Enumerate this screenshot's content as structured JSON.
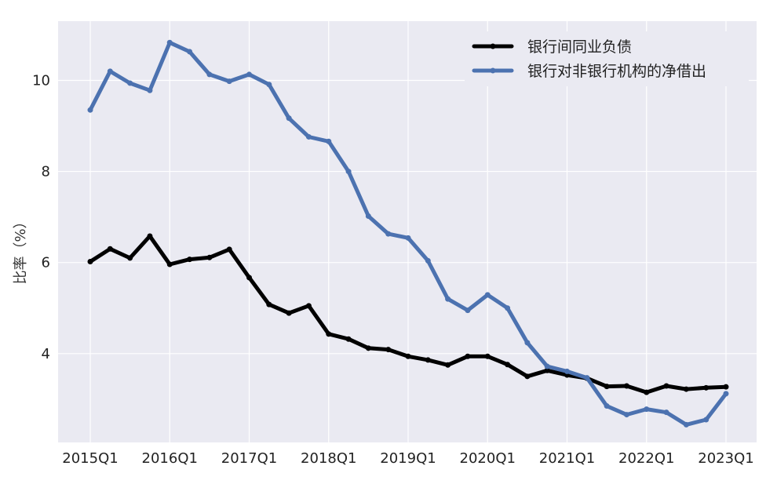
{
  "chart_data": {
    "type": "line",
    "title": "",
    "xlabel": "",
    "ylabel": "比率（%）",
    "x": [
      "2015Q1",
      "2015Q2",
      "2015Q3",
      "2015Q4",
      "2016Q1",
      "2016Q2",
      "2016Q3",
      "2016Q4",
      "2017Q1",
      "2017Q2",
      "2017Q3",
      "2017Q4",
      "2018Q1",
      "2018Q2",
      "2018Q3",
      "2018Q4",
      "2019Q1",
      "2019Q2",
      "2019Q3",
      "2019Q4",
      "2020Q1",
      "2020Q2",
      "2020Q3",
      "2020Q4",
      "2021Q1",
      "2021Q2",
      "2021Q3",
      "2021Q4",
      "2022Q1",
      "2022Q2",
      "2022Q3",
      "2022Q4",
      "2023Q1"
    ],
    "xticks": [
      "2015Q1",
      "2016Q1",
      "2017Q1",
      "2018Q1",
      "2019Q1",
      "2020Q1",
      "2021Q1",
      "2022Q1",
      "2023Q1"
    ],
    "yticks": [
      4,
      6,
      8,
      10
    ],
    "ylim": [
      2.05,
      11.3
    ],
    "grid": true,
    "legend_position": "top-right",
    "series": [
      {
        "name": "银行间同业负债",
        "color": "#000000",
        "values": [
          6.02,
          6.3,
          6.1,
          6.58,
          5.96,
          6.07,
          6.11,
          6.29,
          5.67,
          5.08,
          4.89,
          5.05,
          4.43,
          4.32,
          4.12,
          4.09,
          3.94,
          3.86,
          3.75,
          3.94,
          3.94,
          3.76,
          3.5,
          3.63,
          3.53,
          3.46,
          3.28,
          3.29,
          3.15,
          3.29,
          3.22,
          3.25,
          3.27
        ]
      },
      {
        "name": "银行对非银行机构的净借出",
        "color": "#4c72b0",
        "values": [
          9.35,
          10.2,
          9.94,
          9.78,
          10.83,
          10.63,
          10.13,
          9.98,
          10.13,
          9.91,
          9.17,
          8.76,
          8.66,
          8.0,
          7.02,
          6.63,
          6.54,
          6.04,
          5.2,
          4.95,
          5.29,
          5.0,
          4.24,
          3.72,
          3.61,
          3.47,
          2.85,
          2.66,
          2.78,
          2.71,
          2.44,
          2.55,
          3.12
        ]
      }
    ]
  }
}
